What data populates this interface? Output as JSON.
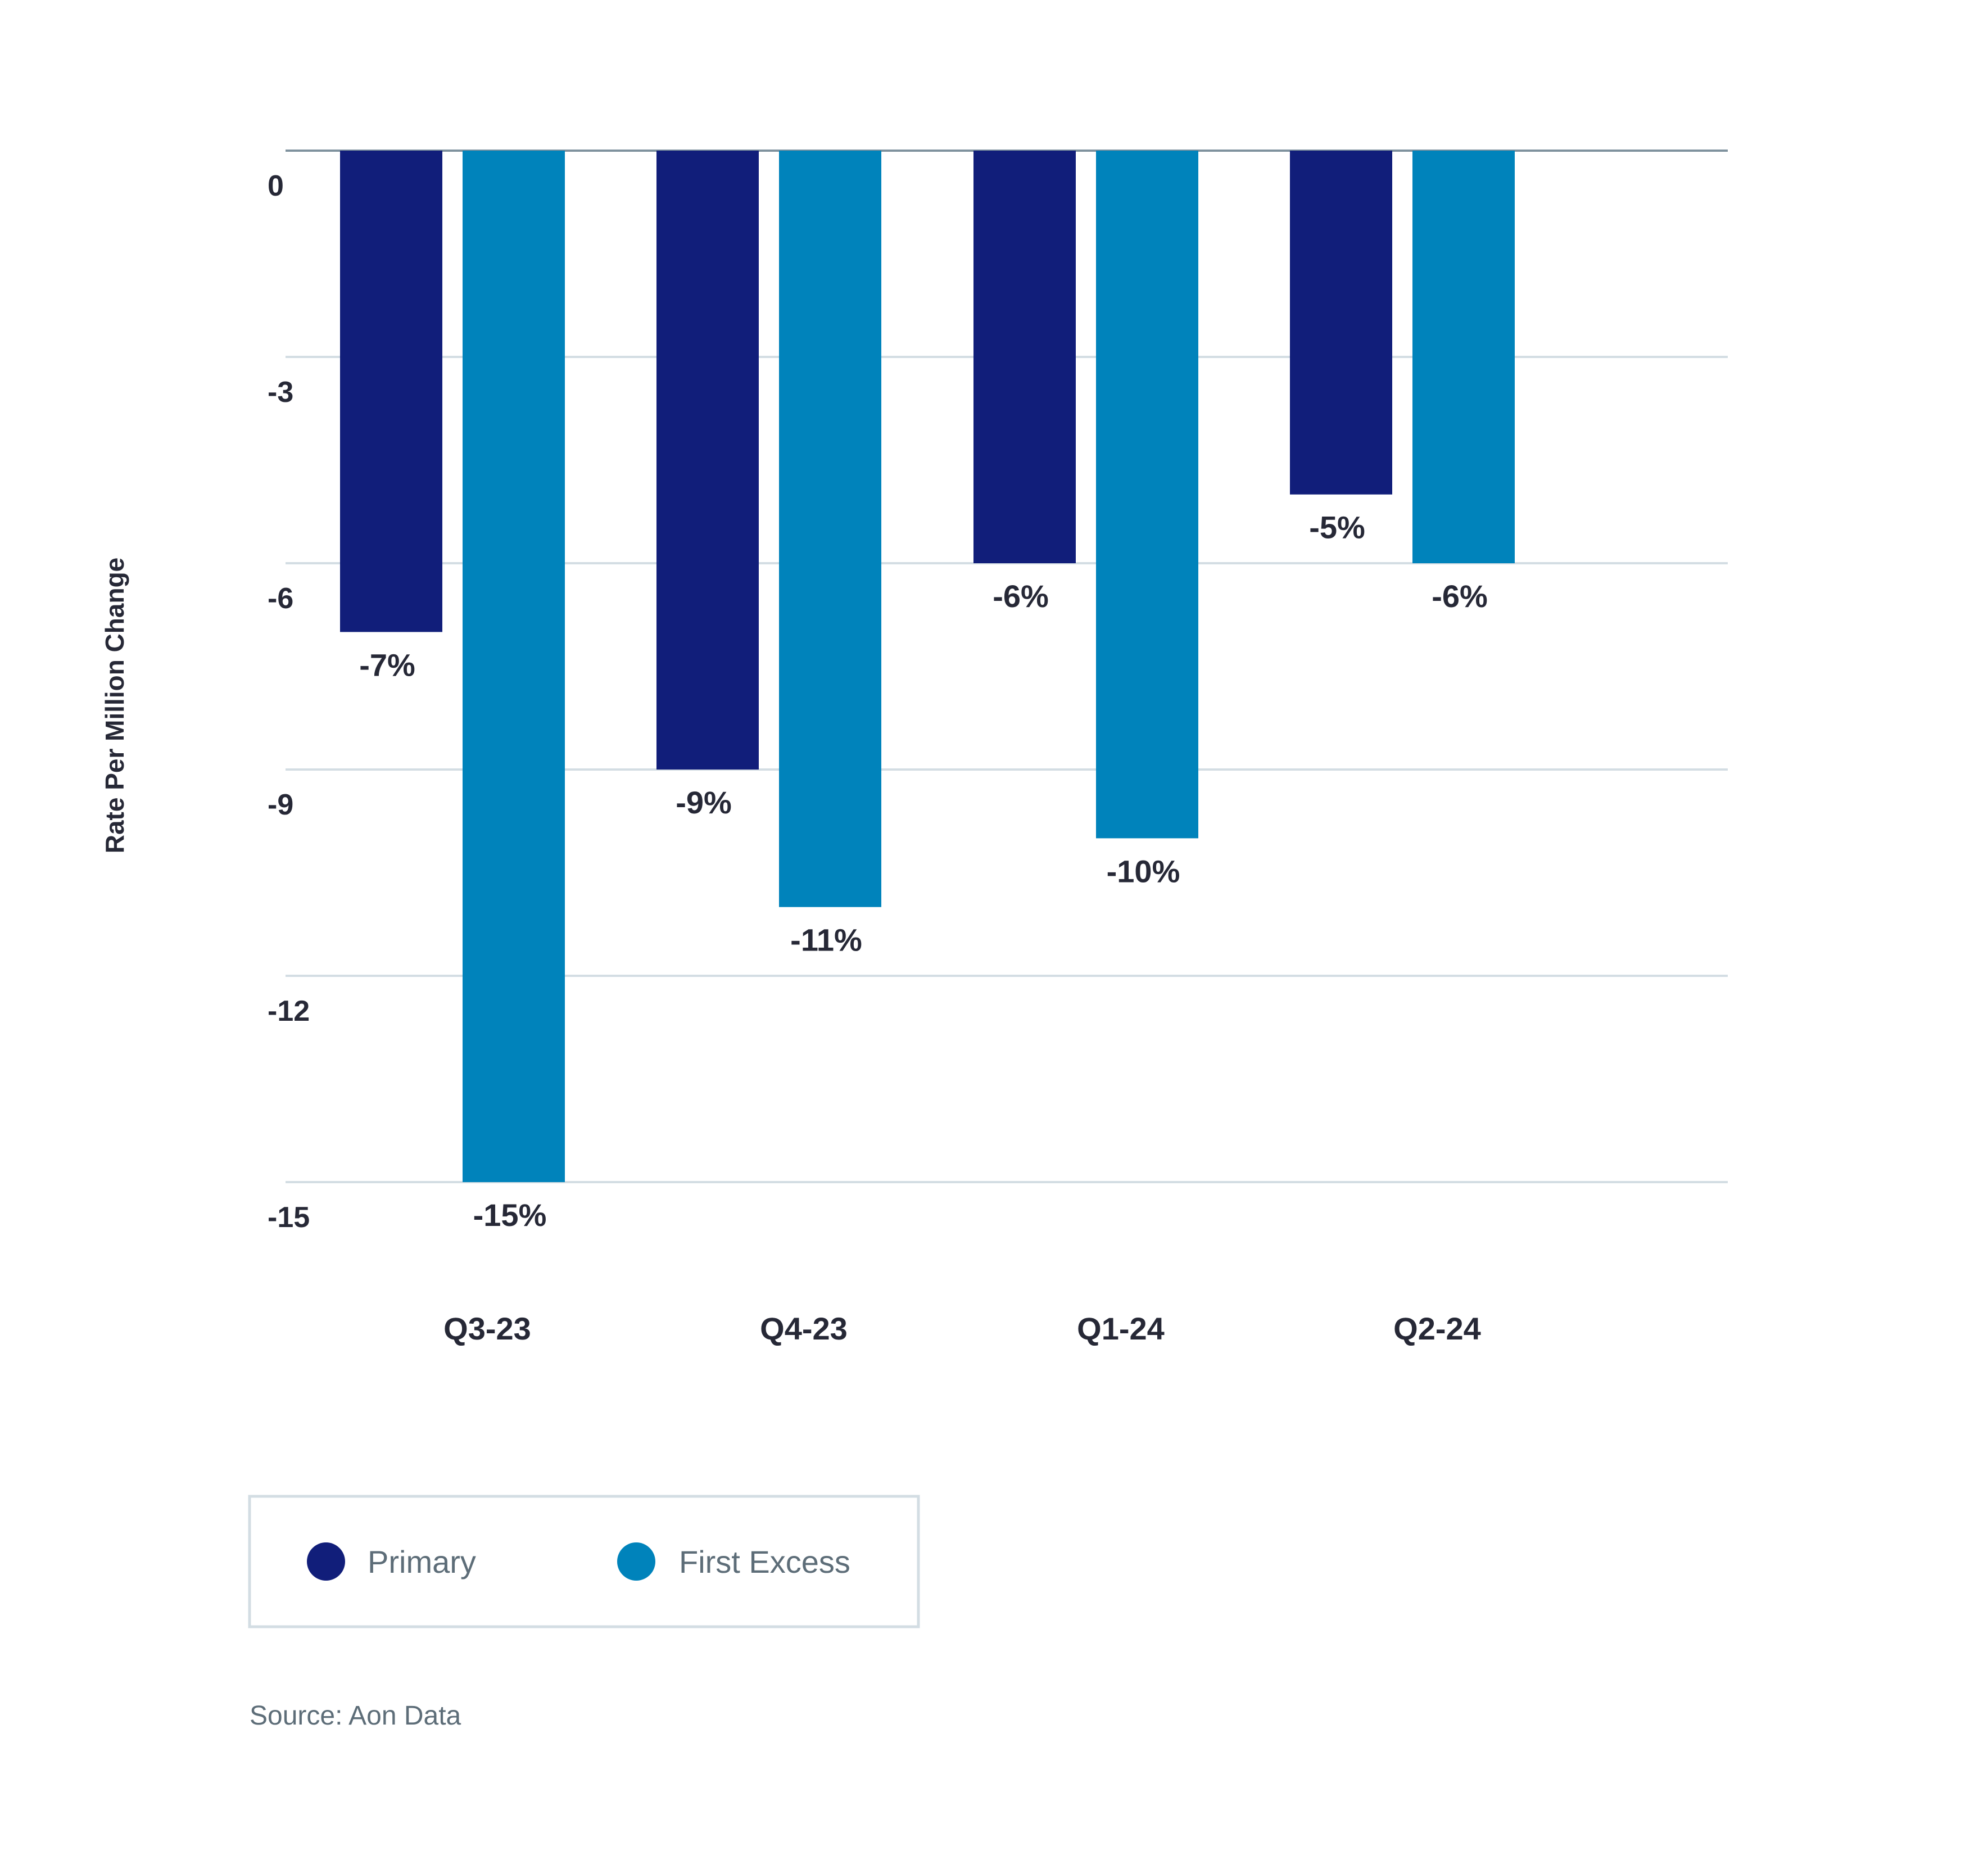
{
  "chart_data": {
    "type": "bar",
    "title": "",
    "xlabel": "",
    "ylabel": "Rate Per Million Change",
    "ylim": [
      -15,
      0
    ],
    "yticks": [
      0,
      -3,
      -6,
      -9,
      -12,
      -15
    ],
    "categories": [
      "Q3-23",
      "Q4-23",
      "Q1-24",
      "Q2-24"
    ],
    "series": [
      {
        "name": "Primary",
        "color": "#111e7a",
        "values": [
          -7,
          -9,
          -6,
          -5
        ],
        "labels": [
          "-7%",
          "-9%",
          "-6%",
          "-5%"
        ]
      },
      {
        "name": "First Excess",
        "color": "#0083bb",
        "values": [
          -15,
          -11,
          -10,
          -6
        ],
        "labels": [
          "-15%",
          "-11%",
          "-10%",
          "-6%"
        ]
      }
    ],
    "grid": true,
    "legend_position": "bottom-left"
  },
  "source": "Source: Aon Data"
}
